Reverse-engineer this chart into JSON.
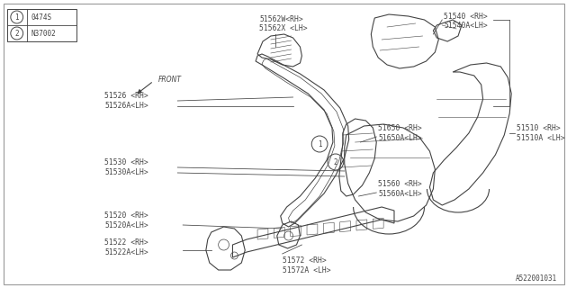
{
  "bg_color": "#ffffff",
  "border_color": "#999999",
  "line_color": "#444444",
  "text_color": "#444444",
  "legend_items": [
    {
      "num": "1",
      "code": "0474S"
    },
    {
      "num": "2",
      "code": "N37002"
    }
  ],
  "footer": "A522001031",
  "figsize": [
    6.4,
    3.2
  ],
  "dpi": 100
}
